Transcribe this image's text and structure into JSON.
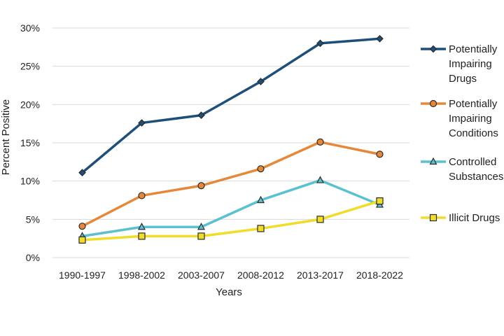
{
  "chart_data": {
    "type": "line",
    "categories": [
      "1990-1997",
      "1998-2002",
      "2003-2007",
      "2008-2012",
      "2013-2017",
      "2018-2022"
    ],
    "xlabel": "Years",
    "ylabel": "Percent Positive",
    "ylim": [
      0,
      30
    ],
    "yticks": [
      0,
      5,
      10,
      15,
      20,
      25,
      30
    ],
    "ytick_labels": [
      "0%",
      "5%",
      "10%",
      "15%",
      "20%",
      "25%",
      "30%"
    ],
    "grid": true,
    "legend_position": "right",
    "series": [
      {
        "name": "Potentially Impairing Drugs",
        "legend_lines": [
          "Potentially",
          "Impairing",
          "Drugs"
        ],
        "values": [
          11.1,
          17.6,
          18.6,
          23.0,
          28.0,
          28.6
        ],
        "color": "#1f4e79",
        "marker": "diamond"
      },
      {
        "name": "Potentially Impairing Conditions",
        "legend_lines": [
          "Potentially",
          "Impairing",
          "Conditions"
        ],
        "values": [
          4.1,
          8.1,
          9.4,
          11.6,
          15.1,
          13.5
        ],
        "color": "#e6883a",
        "marker": "circle"
      },
      {
        "name": "Controlled Substances",
        "legend_lines": [
          "Controlled",
          "Substances"
        ],
        "values": [
          2.8,
          4.0,
          4.0,
          7.5,
          10.1,
          6.9
        ],
        "color": "#5bc0cf",
        "marker": "triangle"
      },
      {
        "name": "Illicit Drugs",
        "legend_lines": [
          "Illicit Drugs"
        ],
        "values": [
          2.3,
          2.8,
          2.8,
          3.8,
          5.0,
          7.4
        ],
        "color": "#f2dc2a",
        "marker": "square"
      }
    ]
  }
}
